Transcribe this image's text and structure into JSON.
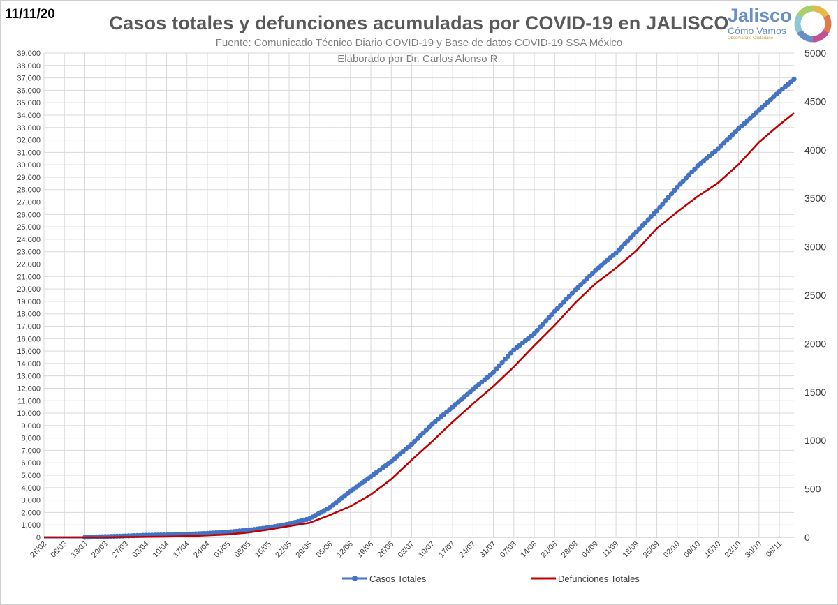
{
  "header": {
    "date": "11/11/20",
    "title": "Casos totales y defunciones acumuladas por COVID-19 en JALISCO",
    "source": "Fuente: Comunicado Técnico Diario COVID-19 y Base de datos COVID-19 SSA México",
    "author": "Elaborado por Dr. Carlos Alonso R."
  },
  "logo": {
    "name": "Jalisco",
    "tagline": "Cómo Vamos",
    "sub": "Observatorio Ciudadano",
    "ring_colors": [
      "#e9b84a",
      "#e07a4a",
      "#c6508f",
      "#6a8fc7",
      "#8cc7d8",
      "#a8cf6a"
    ]
  },
  "chart_data": {
    "type": "line",
    "x_tick_labels": [
      "28/02",
      "06/03",
      "13/03",
      "20/03",
      "27/03",
      "03/04",
      "10/04",
      "17/04",
      "24/04",
      "01/05",
      "08/05",
      "15/05",
      "22/05",
      "29/05",
      "05/06",
      "12/06",
      "19/06",
      "26/06",
      "03/07",
      "10/07",
      "17/07",
      "24/07",
      "31/07",
      "07/08",
      "14/08",
      "21/08",
      "28/08",
      "04/09",
      "11/09",
      "18/09",
      "25/09",
      "02/10",
      "09/10",
      "16/10",
      "23/10",
      "30/10",
      "06/11"
    ],
    "x_range": [
      "28/02",
      "11/11"
    ],
    "y_left": {
      "min": 0,
      "max": 39000,
      "step": 1000
    },
    "y_right": {
      "min": 0,
      "max": 5000,
      "step": 500
    },
    "grid": true,
    "legend_position": "bottom",
    "series": [
      {
        "name": "Casos Totales",
        "axis": "left",
        "color": "#4472c4",
        "markers": true,
        "points": [
          [
            "28/02",
            0
          ],
          [
            "13/03",
            0
          ],
          [
            "20/03",
            60
          ],
          [
            "27/03",
            110
          ],
          [
            "03/04",
            170
          ],
          [
            "10/04",
            200
          ],
          [
            "17/04",
            250
          ],
          [
            "24/04",
            320
          ],
          [
            "01/05",
            420
          ],
          [
            "08/05",
            580
          ],
          [
            "15/05",
            780
          ],
          [
            "22/05",
            1080
          ],
          [
            "29/05",
            1500
          ],
          [
            "05/06",
            2400
          ],
          [
            "12/06",
            3700
          ],
          [
            "19/06",
            4900
          ],
          [
            "26/06",
            6100
          ],
          [
            "03/07",
            7500
          ],
          [
            "10/07",
            9100
          ],
          [
            "17/07",
            10500
          ],
          [
            "24/07",
            11900
          ],
          [
            "31/07",
            13300
          ],
          [
            "07/08",
            15100
          ],
          [
            "14/08",
            16400
          ],
          [
            "21/08",
            18200
          ],
          [
            "28/08",
            19900
          ],
          [
            "04/09",
            21500
          ],
          [
            "11/09",
            22900
          ],
          [
            "18/09",
            24600
          ],
          [
            "25/09",
            26300
          ],
          [
            "02/10",
            28200
          ],
          [
            "09/10",
            29900
          ],
          [
            "16/10",
            31300
          ],
          [
            "23/10",
            32900
          ],
          [
            "30/10",
            34400
          ],
          [
            "06/11",
            35900
          ],
          [
            "11/11",
            36900
          ]
        ]
      },
      {
        "name": "Defunciones Totales",
        "axis": "right",
        "color": "#c00000",
        "markers": false,
        "points": [
          [
            "28/02",
            0
          ],
          [
            "20/03",
            0
          ],
          [
            "27/03",
            3
          ],
          [
            "03/04",
            5
          ],
          [
            "10/04",
            8
          ],
          [
            "17/04",
            12
          ],
          [
            "24/04",
            20
          ],
          [
            "01/05",
            30
          ],
          [
            "08/05",
            50
          ],
          [
            "15/05",
            80
          ],
          [
            "22/05",
            115
          ],
          [
            "29/05",
            150
          ],
          [
            "05/06",
            230
          ],
          [
            "12/06",
            320
          ],
          [
            "19/06",
            440
          ],
          [
            "26/06",
            600
          ],
          [
            "03/07",
            800
          ],
          [
            "10/07",
            990
          ],
          [
            "17/07",
            1190
          ],
          [
            "24/07",
            1380
          ],
          [
            "31/07",
            1560
          ],
          [
            "07/08",
            1760
          ],
          [
            "14/08",
            1980
          ],
          [
            "21/08",
            2190
          ],
          [
            "28/08",
            2420
          ],
          [
            "04/09",
            2620
          ],
          [
            "11/09",
            2780
          ],
          [
            "18/09",
            2960
          ],
          [
            "25/09",
            3190
          ],
          [
            "02/10",
            3360
          ],
          [
            "09/10",
            3520
          ],
          [
            "16/10",
            3660
          ],
          [
            "23/10",
            3850
          ],
          [
            "30/10",
            4080
          ],
          [
            "06/11",
            4260
          ],
          [
            "11/11",
            4380
          ]
        ]
      }
    ]
  }
}
